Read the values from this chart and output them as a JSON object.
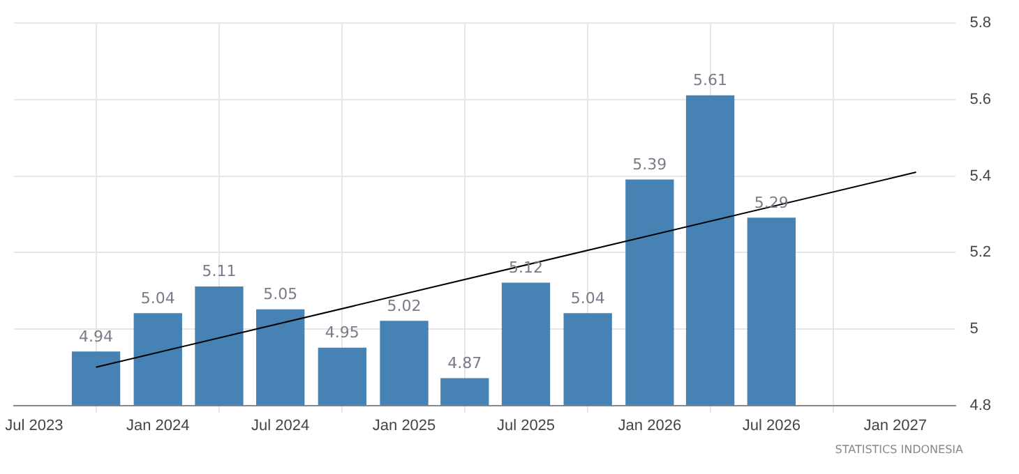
{
  "chart_data": {
    "type": "bar",
    "x": [
      "2023-10",
      "2024-01",
      "2024-04",
      "2024-07",
      "2024-10",
      "2025-01",
      "2025-04",
      "2025-07",
      "2025-10",
      "2026-01",
      "2026-04",
      "2026-07"
    ],
    "series": [
      {
        "color": "#4682b4",
        "values": [
          4.94,
          5.04,
          5.11,
          5.05,
          4.95,
          5.02,
          4.87,
          5.12,
          5.04,
          5.39,
          5.61,
          5.29
        ],
        "value_labels": [
          "4.94",
          "5.04",
          "5.11",
          "5.05",
          "4.95",
          "5.02",
          "4.87",
          "5.12",
          "5.04",
          "5.39",
          "5.61",
          "5.29"
        ]
      },
      {
        "type": "line",
        "color": "#000000",
        "x": [
          "2023-10",
          "2027-02"
        ],
        "values": [
          4.9,
          5.41
        ]
      }
    ],
    "xlim": [
      "2023-06",
      "2027-04"
    ],
    "xticks": [
      {
        "value": "2023-07",
        "label": "Jul 2023"
      },
      {
        "value": "2024-01",
        "label": "Jan 2024"
      },
      {
        "value": "2024-07",
        "label": "Jul 2024"
      },
      {
        "value": "2025-01",
        "label": "Jan 2025"
      },
      {
        "value": "2025-07",
        "label": "Jul 2025"
      },
      {
        "value": "2026-01",
        "label": "Jan 2026"
      },
      {
        "value": "2026-07",
        "label": "Jul 2026"
      },
      {
        "value": "2027-01",
        "label": "Jan 2027"
      }
    ],
    "ylim": [
      4.8,
      5.8
    ],
    "yticks": [
      4.8,
      5,
      5.2,
      5.4,
      5.6,
      5.8
    ],
    "grid": true,
    "legend": false,
    "annotations": [
      "STATISTICS INDONESIA"
    ]
  }
}
